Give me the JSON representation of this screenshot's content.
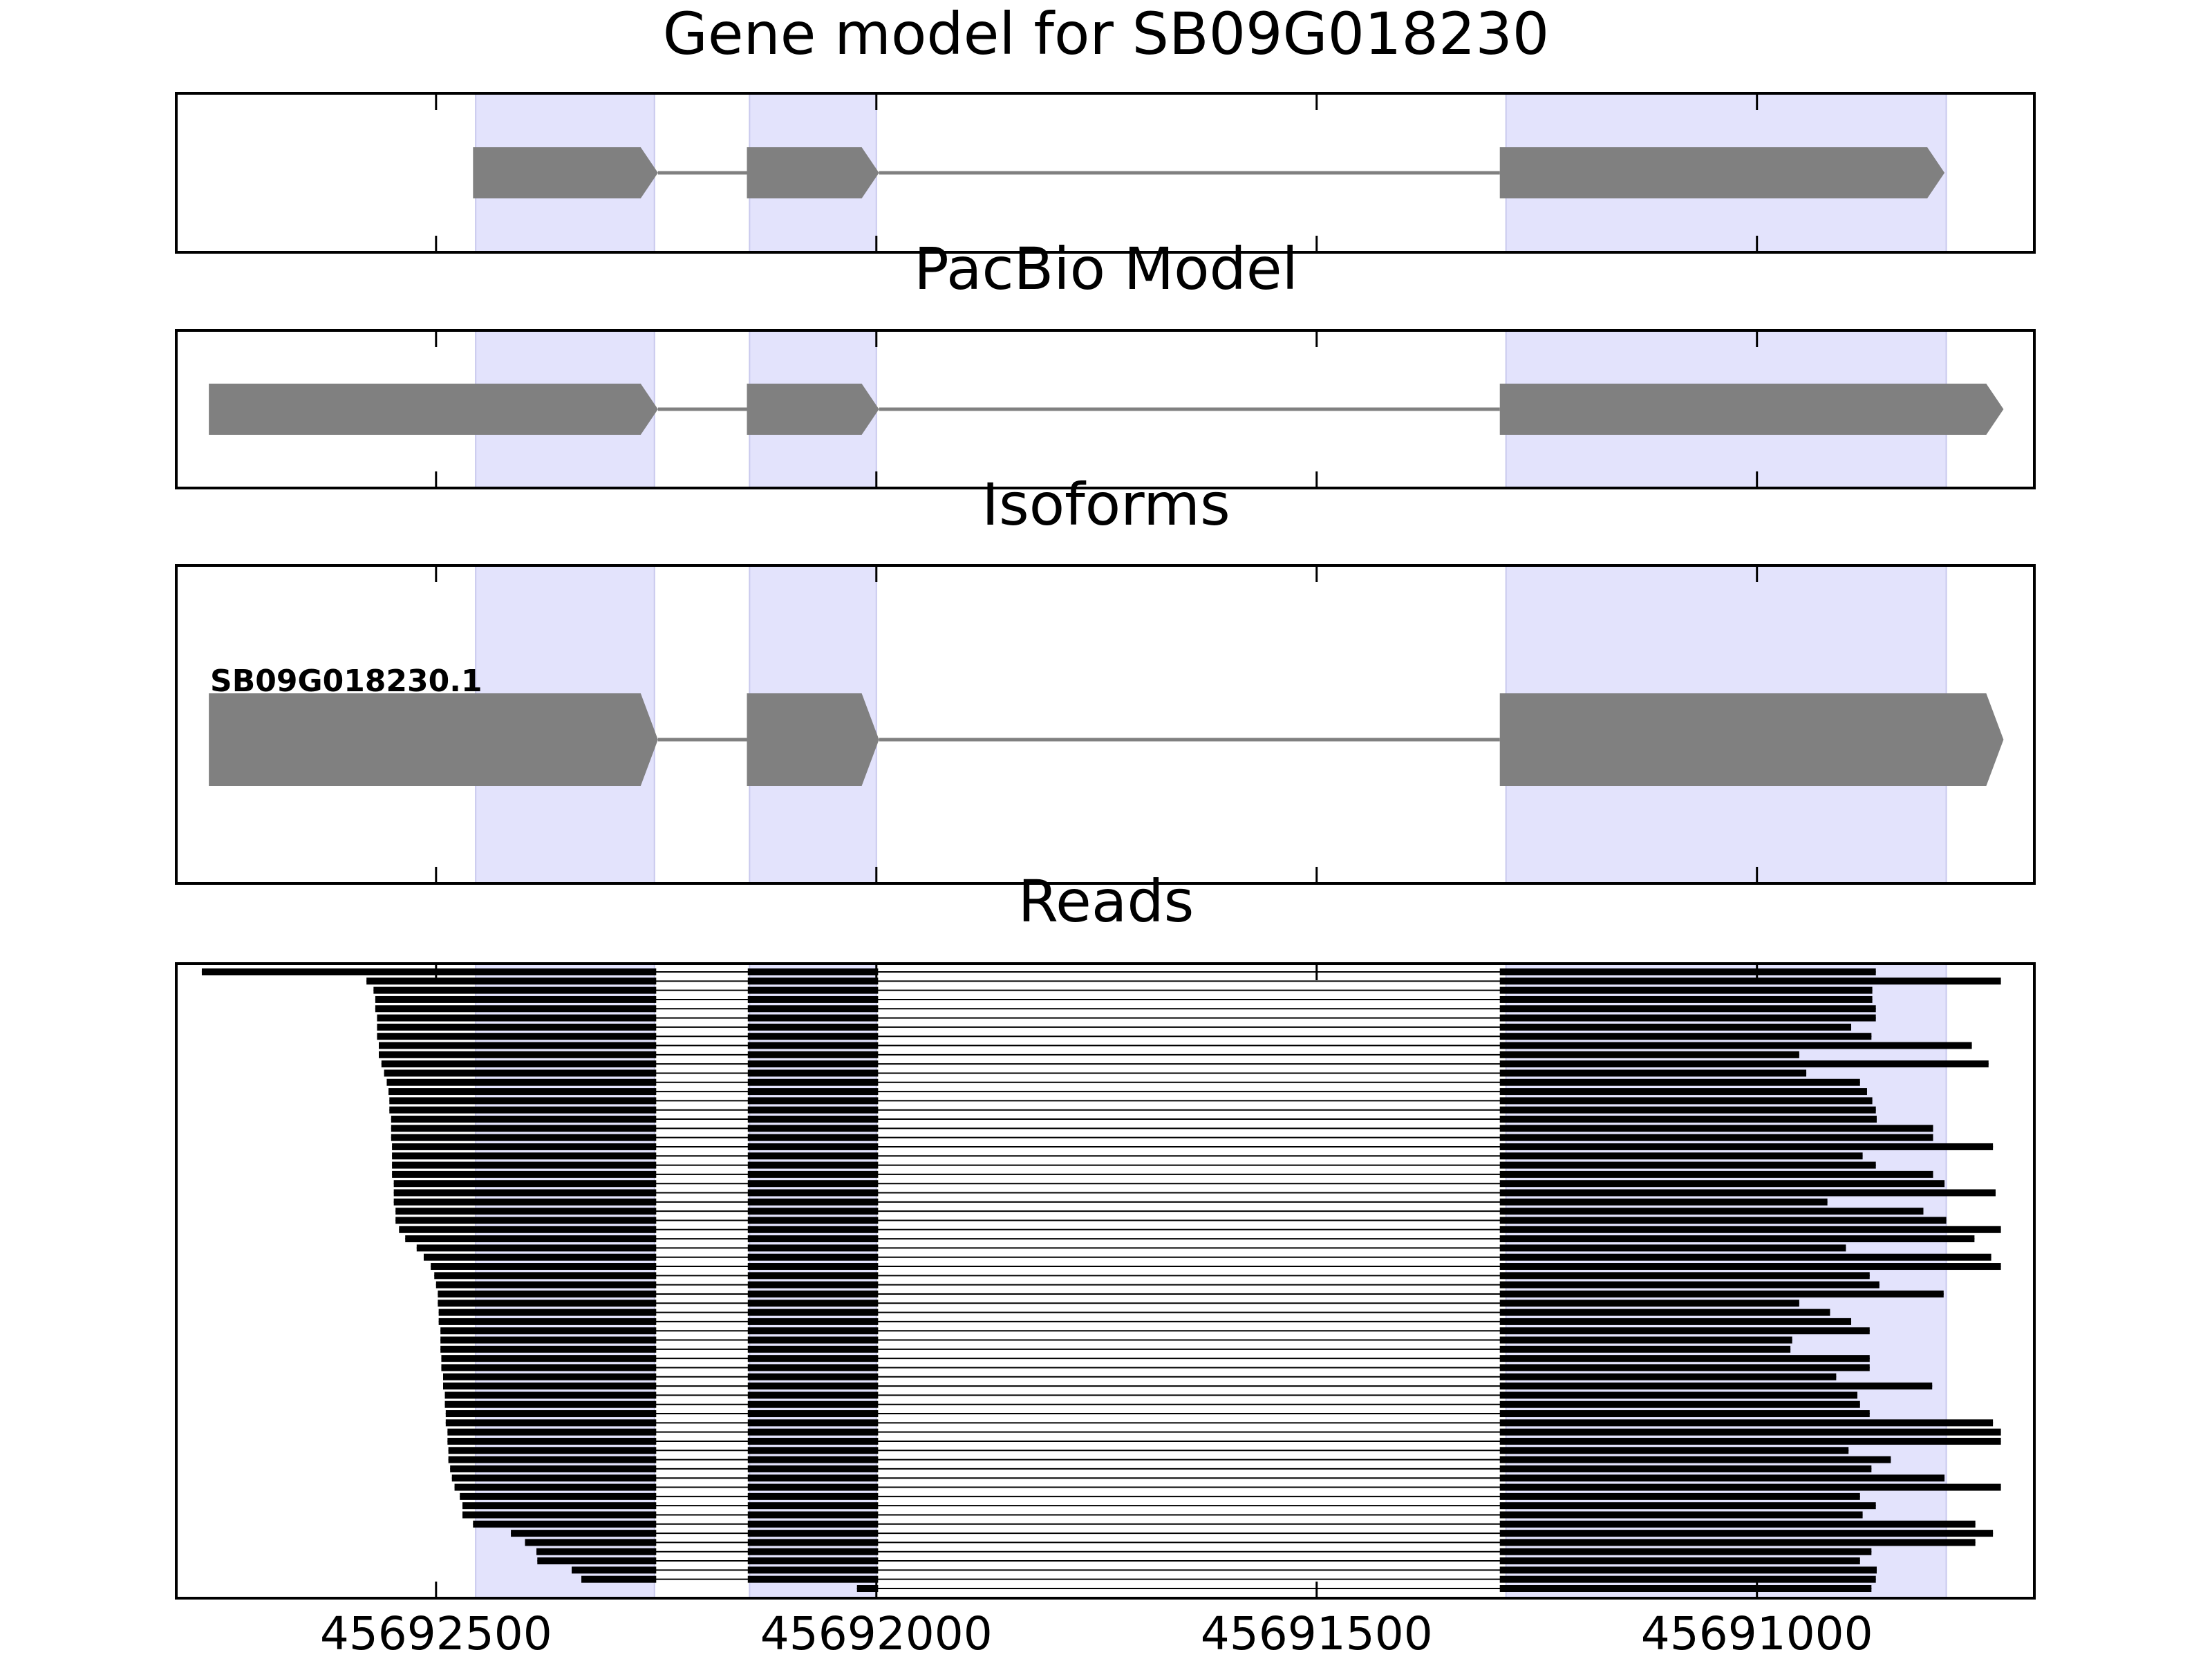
{
  "chart_data": [
    {
      "type": "gene",
      "title": "Gene model for SB09G018230",
      "color": "#808080",
      "exons": [
        [
          45692458,
          45692248
        ],
        [
          45692147,
          45691997
        ],
        [
          45691292,
          45690787
        ]
      ]
    },
    {
      "type": "gene",
      "title": "PacBio Model",
      "color": "#808080",
      "exons": [
        [
          45692758,
          45692248
        ],
        [
          45692147,
          45691997
        ],
        [
          45691292,
          45690720
        ]
      ]
    },
    {
      "type": "isoform",
      "title": "Isoforms",
      "color": "#808080",
      "label": "SB09G018230.1",
      "exons": [
        [
          45692758,
          45692248
        ],
        [
          45692147,
          45691997
        ],
        [
          45691292,
          45690720
        ]
      ]
    },
    {
      "type": "reads",
      "title": "Reads",
      "color": "#000000",
      "xlim": [
        45692795,
        45690685
      ],
      "xticks": [
        45692500,
        45692000,
        45691500,
        45691000
      ],
      "highlight": [
        [
          45692455,
          45692252
        ],
        [
          45692144,
          45692000
        ],
        [
          45691285,
          45690785
        ]
      ],
      "highlight_color": "#e3e3fc",
      "blocks": [
        [
          45692800,
          45692250
        ],
        [
          45692146,
          45691998
        ],
        [
          45691292,
          45690600
        ]
      ],
      "reads": [
        [
          45692766,
          45690865
        ],
        [
          45692579,
          45690723
        ],
        [
          45692571,
          45690869
        ],
        [
          45692569,
          45690869
        ],
        [
          45692569,
          45690865
        ],
        [
          45692567,
          45690865
        ],
        [
          45692567,
          45690893
        ],
        [
          45692567,
          45690870
        ],
        [
          45692565,
          45690756
        ],
        [
          45692565,
          45690952
        ],
        [
          45692562,
          45690737
        ],
        [
          45692559,
          45690944
        ],
        [
          45692556,
          45690883
        ],
        [
          45692554,
          45690875
        ],
        [
          45692553,
          45690869
        ],
        [
          45692553,
          45690865
        ],
        [
          45692551,
          45690864
        ],
        [
          45692551,
          45690800
        ],
        [
          45692551,
          45690800
        ],
        [
          45692550,
          45690732
        ],
        [
          45692550,
          45690880
        ],
        [
          45692550,
          45690865
        ],
        [
          45692550,
          45690800
        ],
        [
          45692548,
          45690787
        ],
        [
          45692548,
          45690729
        ],
        [
          45692548,
          45690920
        ],
        [
          45692546,
          45690811
        ],
        [
          45692546,
          45690785
        ],
        [
          45692542,
          45690723
        ],
        [
          45692535,
          45690753
        ],
        [
          45692522,
          45690899
        ],
        [
          45692514,
          45690734
        ],
        [
          45692506,
          45690723
        ],
        [
          45692502,
          45690872
        ],
        [
          45692500,
          45690861
        ],
        [
          45692498,
          45690788
        ],
        [
          45692498,
          45690952
        ],
        [
          45692497,
          45690917
        ],
        [
          45692497,
          45690893
        ],
        [
          45692495,
          45690872
        ],
        [
          45692495,
          45690960
        ],
        [
          45692495,
          45690962
        ],
        [
          45692494,
          45690872
        ],
        [
          45692494,
          45690872
        ],
        [
          45692492,
          45690910
        ],
        [
          45692492,
          45690801
        ],
        [
          45692490,
          45690886
        ],
        [
          45692490,
          45690883
        ],
        [
          45692489,
          45690872
        ],
        [
          45692489,
          45690732
        ],
        [
          45692487,
          45690723
        ],
        [
          45692487,
          45690723
        ],
        [
          45692486,
          45690896
        ],
        [
          45692486,
          45690848
        ],
        [
          45692484,
          45690870
        ],
        [
          45692482,
          45690787
        ],
        [
          45692479,
          45690723
        ],
        [
          45692473,
          45690883
        ],
        [
          45692470,
          45690865
        ],
        [
          45692470,
          45690880
        ],
        [
          45692458,
          45690752
        ],
        [
          45692415,
          45690732
        ],
        [
          45692399,
          45690752
        ],
        [
          45692386,
          45690870
        ],
        [
          45692385,
          45690883
        ],
        [
          45692346,
          45690864
        ],
        [
          45692335,
          45690865
        ],
        [
          45692022,
          45690870
        ]
      ]
    }
  ]
}
